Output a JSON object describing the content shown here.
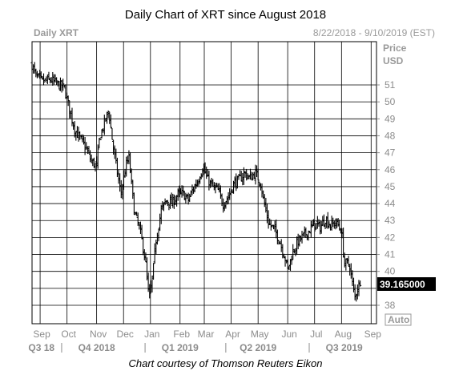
{
  "title": "Daily Chart of XRT since August 2018",
  "credit": "Chart courtesy of Thomson Reuters Eikon",
  "header": {
    "symbol": "Daily XRT",
    "date_range": "8/22/2018 - 9/10/2019 (EST)",
    "price_label_1": "Price",
    "price_label_2": "USD"
  },
  "auto_label": "Auto",
  "last_price_label": "39.165000",
  "colors": {
    "bars": "#000000",
    "grid": "#000000",
    "muted_text": "#8c8c8c",
    "last_price_bg": "#000000"
  },
  "chart_data": {
    "type": "bar",
    "subtype": "ohlc",
    "title": "Daily Chart of XRT since August 2018",
    "ylabel": "Price USD",
    "ylim": [
      37.3,
      52.8
    ],
    "y_ticks": [
      38,
      39,
      40,
      41,
      42,
      43,
      44,
      45,
      46,
      47,
      48,
      49,
      50,
      51
    ],
    "y_tick_labels": [
      "38",
      "",
      "40",
      "41",
      "42",
      "43",
      "44",
      "45",
      "46",
      "47",
      "48",
      "49",
      "50",
      "51"
    ],
    "x_month_labels": [
      "Sep",
      "Oct",
      "Nov",
      "Dec",
      "Jan",
      "Feb",
      "Mar",
      "Apr",
      "May",
      "Jun",
      "Jul",
      "Aug",
      "Sep"
    ],
    "x_month_ticks": [
      0.3,
      1.3,
      2.4,
      3.4,
      4.4,
      5.5,
      6.4,
      7.4,
      8.4,
      9.5,
      10.5,
      11.5,
      12.6
    ],
    "quarter_labels": [
      "Q3 18",
      "Q4 2018",
      "Q1 2019",
      "Q2 2019",
      "Q3 2019"
    ],
    "quarter_label_x": [
      0.35,
      2.4,
      5.5,
      8.4,
      11.6
    ],
    "quarter_dividers": [
      1.1,
      4.2,
      7.2,
      10.3
    ],
    "last_price": 39.165,
    "grid": true,
    "x_index_range": [
      0,
      12.8
    ],
    "key_points": [
      [
        0.0,
        52.2
      ],
      [
        0.15,
        51.5
      ],
      [
        0.4,
        51.2
      ],
      [
        0.7,
        51.3
      ],
      [
        1.0,
        51.0
      ],
      [
        1.2,
        50.8
      ],
      [
        1.4,
        49.5
      ],
      [
        1.6,
        48.3
      ],
      [
        1.8,
        47.8
      ],
      [
        2.0,
        47.3
      ],
      [
        2.2,
        46.5
      ],
      [
        2.4,
        46.2
      ],
      [
        2.5,
        47.8
      ],
      [
        2.7,
        48.8
      ],
      [
        2.85,
        49.5
      ],
      [
        3.0,
        47.5
      ],
      [
        3.2,
        45.5
      ],
      [
        3.3,
        44.6
      ],
      [
        3.5,
        46.3
      ],
      [
        3.6,
        46.7
      ],
      [
        3.8,
        43.5
      ],
      [
        4.0,
        42.5
      ],
      [
        4.2,
        40.8
      ],
      [
        4.35,
        38.3
      ],
      [
        4.5,
        40.0
      ],
      [
        4.6,
        41.8
      ],
      [
        4.8,
        43.6
      ],
      [
        5.0,
        44.2
      ],
      [
        5.2,
        44.0
      ],
      [
        5.4,
        44.5
      ],
      [
        5.6,
        44.6
      ],
      [
        5.8,
        44.2
      ],
      [
        6.0,
        44.9
      ],
      [
        6.2,
        45.5
      ],
      [
        6.35,
        46.2
      ],
      [
        6.5,
        45.5
      ],
      [
        6.7,
        45.0
      ],
      [
        6.9,
        44.8
      ],
      [
        7.1,
        44.0
      ],
      [
        7.3,
        44.4
      ],
      [
        7.5,
        45.2
      ],
      [
        7.7,
        45.4
      ],
      [
        7.9,
        45.8
      ],
      [
        8.1,
        45.5
      ],
      [
        8.3,
        45.8
      ],
      [
        8.5,
        45.2
      ],
      [
        8.6,
        44.2
      ],
      [
        8.8,
        42.8
      ],
      [
        9.0,
        42.5
      ],
      [
        9.2,
        41.8
      ],
      [
        9.4,
        40.8
      ],
      [
        9.5,
        40.1
      ],
      [
        9.7,
        41.2
      ],
      [
        9.9,
        41.8
      ],
      [
        10.1,
        42.1
      ],
      [
        10.3,
        42.4
      ],
      [
        10.5,
        42.8
      ],
      [
        10.7,
        42.6
      ],
      [
        10.9,
        43.1
      ],
      [
        11.1,
        42.7
      ],
      [
        11.3,
        42.9
      ],
      [
        11.5,
        42.4
      ],
      [
        11.6,
        40.5
      ],
      [
        11.8,
        40.4
      ],
      [
        11.9,
        39.3
      ],
      [
        12.0,
        38.5
      ],
      [
        12.1,
        39.1
      ],
      [
        12.2,
        39.165
      ]
    ]
  }
}
